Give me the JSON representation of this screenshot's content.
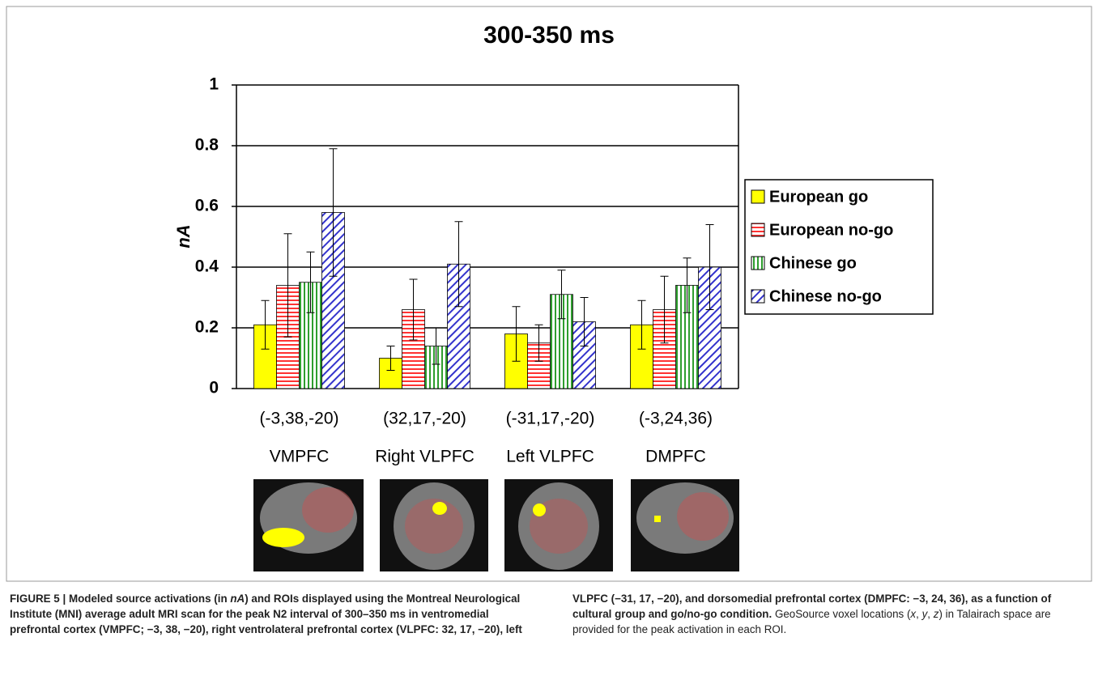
{
  "chart_data": {
    "type": "bar",
    "title": "300-350 ms",
    "ylabel": "nA",
    "categories": [
      "VMPFC",
      "Right VLPFC",
      "Left VLPFC",
      "DMPFC"
    ],
    "category_coords": [
      "(-3,38,-20)",
      "(32,17,-20)",
      "(-31,17,-20)",
      "(-3,24,36)"
    ],
    "ylim": [
      0,
      1
    ],
    "yticks": [
      0,
      0.2,
      0.4,
      0.6,
      0.8,
      1
    ],
    "grid": true,
    "legend": "right",
    "series": [
      {
        "name": "European go",
        "color": "#ffff00",
        "pattern": "solid",
        "values": [
          0.21,
          0.1,
          0.18,
          0.21
        ],
        "errors": [
          0.08,
          0.04,
          0.09,
          0.08
        ]
      },
      {
        "name": "European no-go",
        "color": "#ff3333",
        "pattern": "horizontal",
        "values": [
          0.34,
          0.26,
          0.15,
          0.26
        ],
        "errors": [
          0.17,
          0.1,
          0.06,
          0.11
        ]
      },
      {
        "name": "Chinese go",
        "color": "#2e9e2e",
        "pattern": "vertical",
        "values": [
          0.35,
          0.14,
          0.31,
          0.34
        ],
        "errors": [
          0.1,
          0.06,
          0.08,
          0.09
        ]
      },
      {
        "name": "Chinese no-go",
        "color": "#3333cc",
        "pattern": "diagonal",
        "values": [
          0.58,
          0.41,
          0.22,
          0.4
        ],
        "errors": [
          0.21,
          0.14,
          0.08,
          0.14
        ]
      }
    ]
  },
  "caption": [
    "FIGURE 5 | Modeled source activations (in ",
    "nA",
    ") and ROIs displayed using the Montreal Neurological Institute (MNI) average adult MRI scan for the peak N2 interval of 300–350 ms in ventromedial prefrontal cortex (VMPFC; −3, 38, −20), right ventrolateral prefrontal cortex (VLPFC: 32, 17, −20), left VLPFC (−31, 17, −20), and dorsomedial prefrontal cortex (DMPFC: −3, 24, 36), as a function of cultural group and go/no-go condition.",
    " GeoSource voxel locations (",
    "x",
    ", ",
    "y",
    ", ",
    "z",
    ") in Talairach space are provided for the peak activation in each ROI."
  ]
}
